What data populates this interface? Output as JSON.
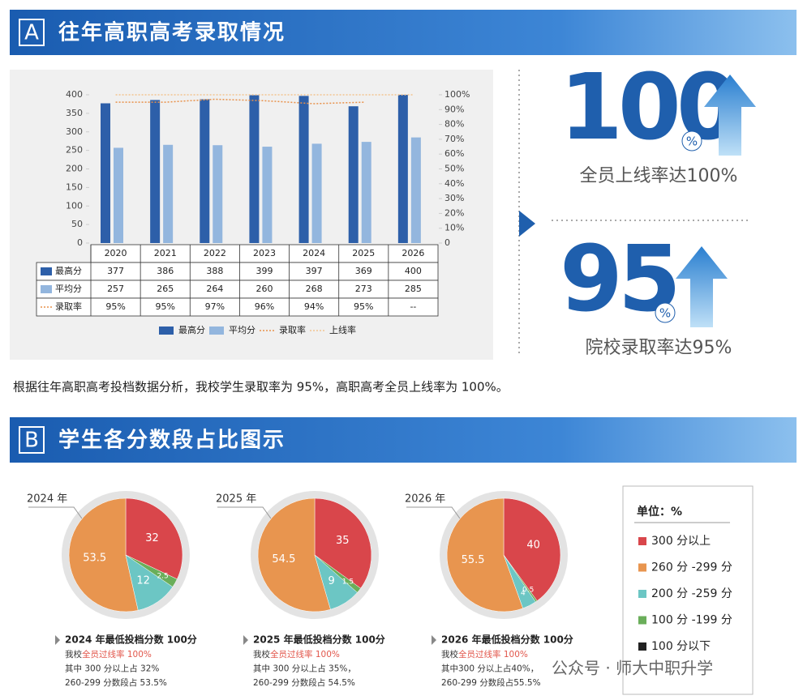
{
  "section_a": {
    "letter": "A",
    "title": "往年高职高考录取情况"
  },
  "section_b": {
    "letter": "B",
    "title": "学生各分数段占比图示"
  },
  "chart_data": [
    {
      "type": "bar",
      "categories": [
        "2020",
        "2021",
        "2022",
        "2023",
        "2024",
        "2025",
        "2026"
      ],
      "series": [
        {
          "name": "最高分",
          "type": "bar",
          "color": "#2d5fa9",
          "values": [
            377,
            386,
            388,
            399,
            397,
            369,
            400
          ]
        },
        {
          "name": "平均分",
          "type": "bar",
          "color": "#93b6de",
          "values": [
            257,
            265,
            264,
            260,
            268,
            273,
            285
          ]
        },
        {
          "name": "录取率",
          "type": "line",
          "axis": "y2",
          "color": "#e8914a",
          "values": [
            95,
            95,
            97,
            96,
            94,
            95,
            null
          ],
          "value_labels": [
            "95%",
            "95%",
            "97%",
            "96%",
            "94%",
            "95%",
            "--"
          ]
        },
        {
          "name": "上线率",
          "type": "line",
          "axis": "y2",
          "color": "#f3c48f",
          "values": [
            100,
            100,
            100,
            100,
            100,
            100,
            100
          ]
        }
      ],
      "ylim": [
        0,
        400
      ],
      "yticks": [
        0,
        50,
        100,
        150,
        200,
        250,
        300,
        350,
        400
      ],
      "y2lim": [
        0,
        100
      ],
      "y2ticks": [
        0,
        {
          "value": 10,
          "label": "10%"
        },
        {
          "value": 20,
          "label": "20%"
        },
        {
          "value": 30,
          "label": "30%"
        },
        {
          "value": 40,
          "label": "40%"
        },
        {
          "value": 50,
          "label": "50%"
        },
        {
          "value": 60,
          "label": "60%"
        },
        {
          "value": 70,
          "label": "70%"
        },
        {
          "value": 80,
          "label": "80%"
        },
        {
          "value": 90,
          "label": "90%"
        },
        {
          "value": 100,
          "label": "100%"
        }
      ],
      "legend": "bottom"
    },
    {
      "type": "pie",
      "title": "2024 年",
      "values": [
        32,
        53.5,
        12,
        2.5
      ]
    },
    {
      "type": "pie",
      "title": "2025 年",
      "values": [
        35,
        54.5,
        9,
        1.5
      ]
    },
    {
      "type": "pie",
      "title": "2026 年",
      "values": [
        40,
        55.5,
        4,
        0.5
      ]
    }
  ],
  "stats": [
    {
      "number": "100",
      "unit": "%",
      "caption": "全员上线率达100%"
    },
    {
      "number": "95",
      "unit": "%",
      "caption": "院校录取率达95%"
    }
  ],
  "summary": "根据往年高职高考投档数据分析，我校学生录取率为 95%，高职高考全员上线率为 100%。",
  "pie_legend": {
    "title": "单位：%",
    "items": [
      {
        "name": "300 分以上",
        "color": "#d9464b"
      },
      {
        "name": "260 分 -299 分",
        "color": "#e8954f"
      },
      {
        "name": "200 分 -259 分",
        "color": "#6cc6c4"
      },
      {
        "name": "100 分 -199 分",
        "color": "#6aae5a"
      },
      {
        "name": "100 分以下",
        "color": "#222222"
      }
    ]
  },
  "pie_notes": [
    {
      "heading": "2024 年最低投档分数 100分",
      "lines": [
        [
          "我校",
          "全员过线率 100%"
        ],
        [
          "其中 300 分以上占 32%"
        ],
        [
          "260-299 分数段占 53.5%"
        ]
      ]
    },
    {
      "heading": "2025 年最低投档分数 100分",
      "lines": [
        [
          "我校",
          "全员过线率 100%"
        ],
        [
          "其中 300 分以上占 35%，"
        ],
        [
          "260-299 分数段占 54.5%"
        ]
      ]
    },
    {
      "heading": "2026 年最低投档分数 100分",
      "lines": [
        [
          "我校",
          "全员过线率 100%"
        ],
        [
          "其中300 分以上占40%，"
        ],
        [
          "260-299 分数段占55.5%"
        ]
      ]
    }
  ],
  "watermark": "公众号 · 师大中职升学"
}
